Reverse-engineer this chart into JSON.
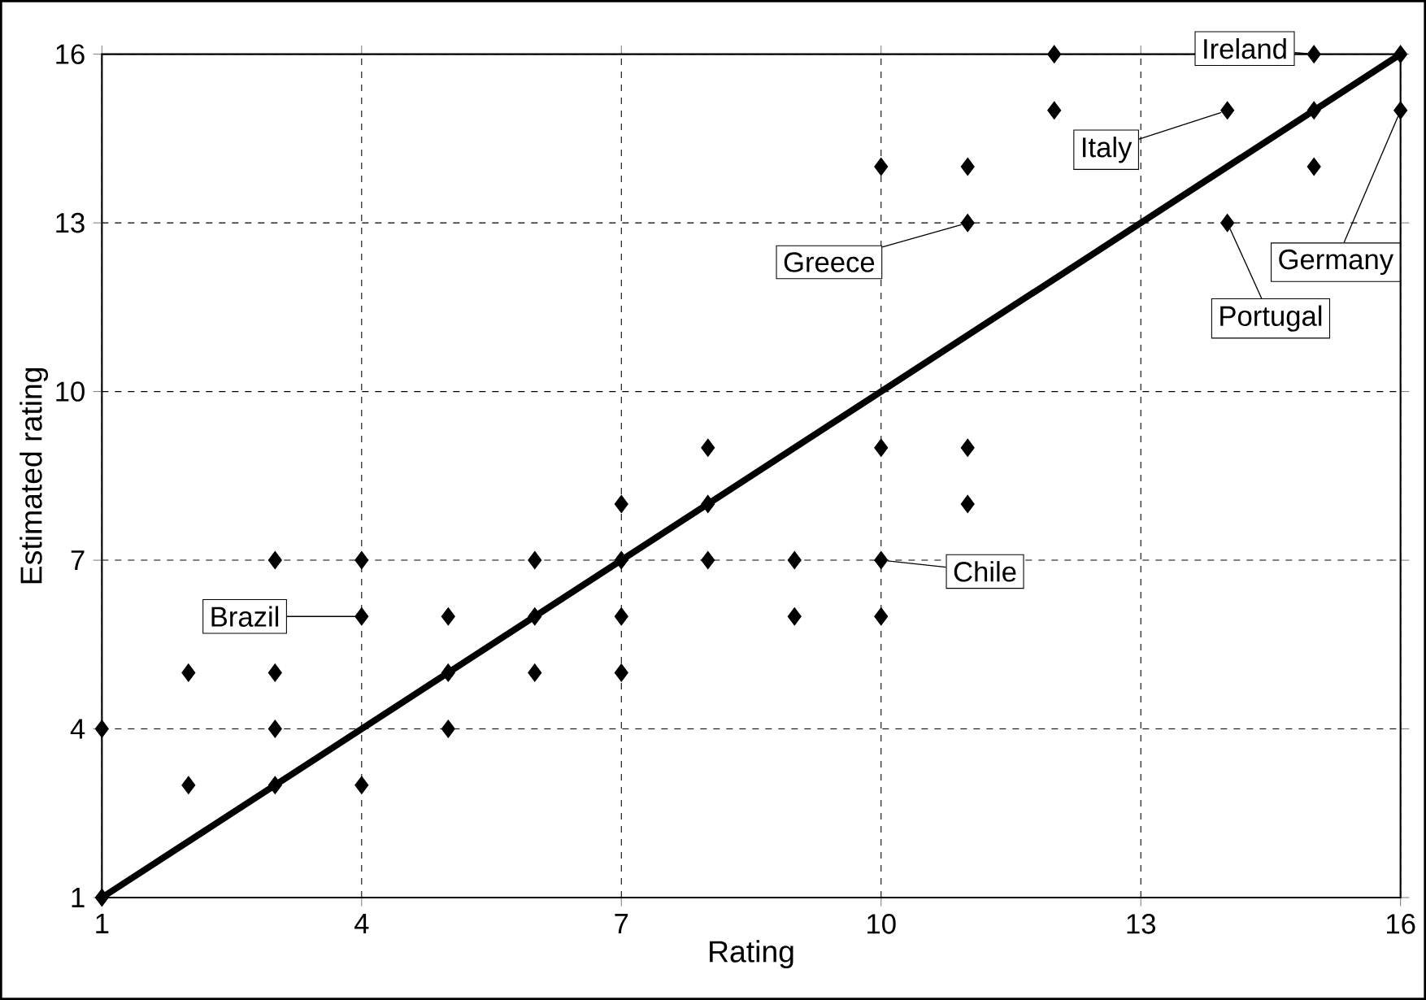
{
  "chart_data": {
    "type": "scatter",
    "xlabel": "Rating",
    "ylabel": "Estimated rating",
    "xlim": [
      1,
      16
    ],
    "ylim": [
      1,
      16
    ],
    "xticks": [
      1,
      4,
      7,
      10,
      13,
      16
    ],
    "yticks": [
      1,
      4,
      7,
      10,
      13,
      16
    ],
    "grid": true,
    "marker": "diamond",
    "series": [
      {
        "color": "#000000",
        "x": [
          1,
          1,
          2,
          2,
          3,
          3,
          3,
          3,
          4,
          4,
          4,
          5,
          5,
          5,
          6,
          6,
          6,
          7,
          7,
          7,
          7,
          8,
          8,
          8,
          9,
          9,
          10,
          10,
          10,
          10,
          11,
          11,
          11,
          11,
          12,
          12,
          14,
          14,
          15,
          15,
          15,
          16,
          16
        ],
        "values": [
          4,
          1,
          5,
          3,
          7,
          5,
          4,
          3,
          7,
          6,
          3,
          6,
          5,
          4,
          7,
          6,
          5,
          8,
          7,
          6,
          5,
          9,
          8,
          7,
          7,
          6,
          14,
          9,
          7,
          6,
          14,
          13,
          9,
          8,
          16,
          15,
          15,
          13,
          16,
          15,
          14,
          16,
          15
        ]
      },
      {
        "type": "line",
        "color": "#000000",
        "marker": "none",
        "x": [
          1,
          16
        ],
        "values": [
          1,
          16
        ]
      }
    ],
    "annotations": [
      {
        "text": "Brazil",
        "x": 4,
        "y": 6
      },
      {
        "text": "Chile",
        "x": 10,
        "y": 7
      },
      {
        "text": "Greece",
        "x": 11,
        "y": 13
      },
      {
        "text": "Italy",
        "x": 14,
        "y": 15
      },
      {
        "text": "Ireland",
        "x": 15,
        "y": 16
      },
      {
        "text": "Germany",
        "x": 16,
        "y": 15
      },
      {
        "text": "Portugal",
        "x": 14,
        "y": 13
      }
    ]
  }
}
